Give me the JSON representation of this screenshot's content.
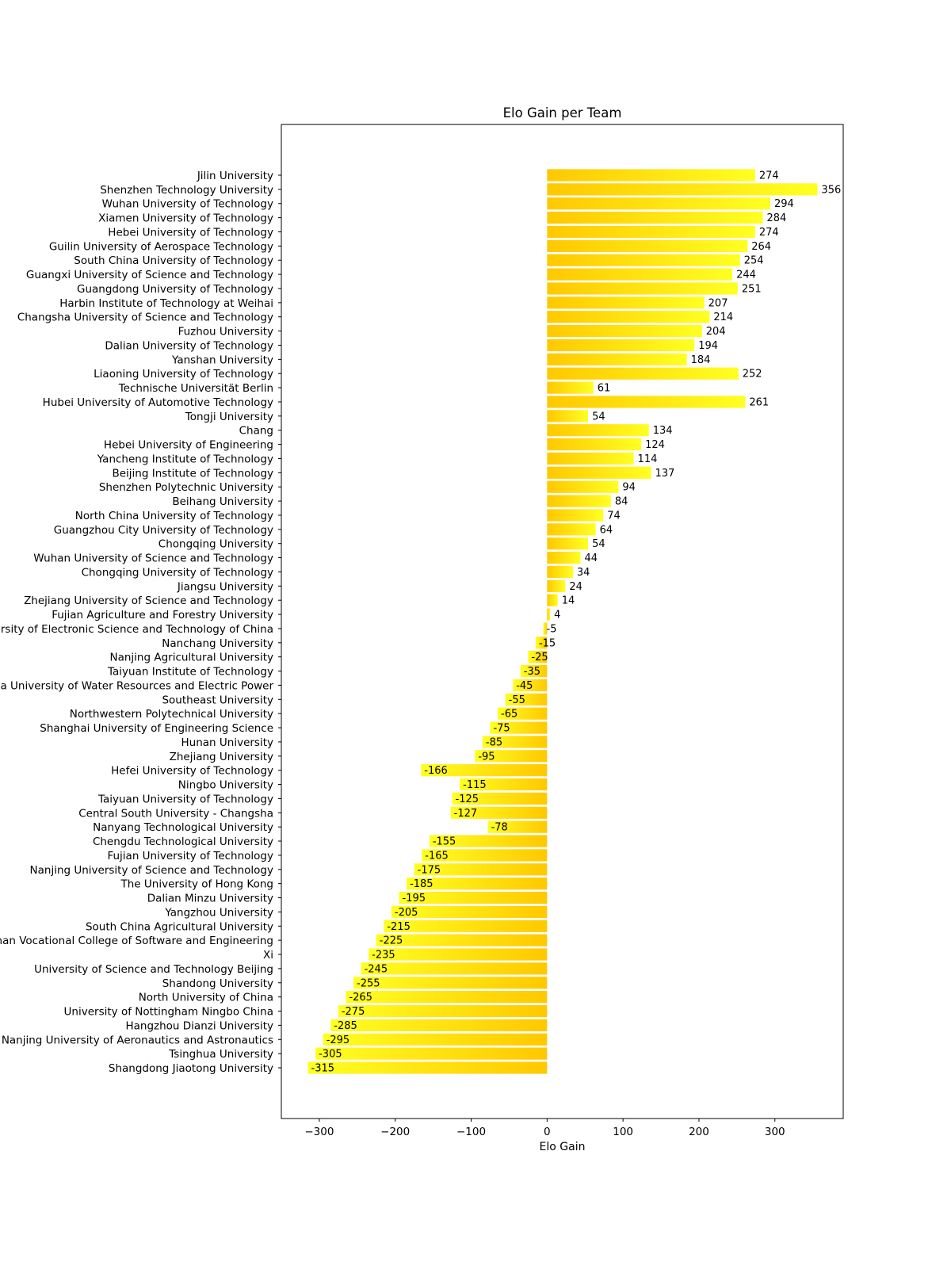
{
  "chart_data": {
    "type": "bar",
    "orientation": "horizontal",
    "title": "Elo Gain per Team",
    "xlabel": "Elo Gain",
    "ylabel": "",
    "xlim": [
      -350,
      390
    ],
    "xticks": [
      -300,
      -200,
      -100,
      0,
      100,
      200,
      300
    ],
    "xtick_labels": [
      "−300",
      "−200",
      "−100",
      "0",
      "100",
      "200",
      "300"
    ],
    "grid": false,
    "legend": "none",
    "colors": {
      "light": "#ffff22",
      "dark": "#ffc800",
      "frame": "#000000",
      "background": "#ffffff"
    },
    "categories": [
      "Jilin University",
      "Shenzhen Technology University",
      "Wuhan University of Technology",
      "Xiamen University of Technology",
      "Hebei University of Technology",
      "Guilin University of Aerospace Technology",
      "South China University of Technology",
      "Guangxi University of Science and Technology",
      "Guangdong University of Technology",
      "Harbin Institute of Technology at Weihai",
      "Changsha University of Science and Technology",
      "Fuzhou University",
      "Dalian University of Technology",
      "Yanshan University",
      "Liaoning University of Technology",
      "Technische Universität Berlin",
      "Hubei University of Automotive Technology",
      "Tongji University",
      "Chang",
      "Hebei University of Engineering",
      "Yancheng Institute of Technology",
      "Beijing Institute of Technology",
      "Shenzhen Polytechnic University",
      "Beihang University",
      "North China University of Technology",
      "Guangzhou City University of Technology",
      "Chongqing University",
      "Wuhan University of Science and Technology",
      "Chongqing University of Technology",
      "Jiangsu University",
      "Zhejiang University of Science and Technology",
      "Fujian Agriculture and Forestry University",
      "University of Electronic Science and Technology of China",
      "Nanchang University",
      "Nanjing Agricultural University",
      "Taiyuan Institute of Technology",
      "North China University of Water Resources and Electric Power",
      "Southeast University",
      "Northwestern Polytechnical University",
      "Shanghai University of Engineering Science",
      "Hunan University",
      "Zhejiang University",
      "Hefei University of Technology",
      "Ningbo University",
      "Taiyuan University of Technology",
      "Central South University - Changsha",
      "Nanyang Technological University",
      "Chengdu Technological University",
      "Fujian University of Technology",
      "Nanjing University of Science and Technology",
      "The University of Hong Kong",
      "Dalian Minzu University",
      "Yangzhou University",
      "South China Agricultural University",
      "Wuhan Vocational College of Software and Engineering",
      "Xi",
      "University of Science and Technology Beijing",
      "Shandong University",
      "North University of China",
      "University of Nottingham Ningbo China",
      "Hangzhou Dianzi University",
      "Nanjing University of Aeronautics and Astronautics",
      "Tsinghua University",
      "Shangdong Jiaotong University"
    ],
    "values": [
      274,
      356,
      294,
      284,
      274,
      264,
      254,
      244,
      251,
      207,
      214,
      204,
      194,
      184,
      252,
      61,
      261,
      54,
      134,
      124,
      114,
      137,
      94,
      84,
      74,
      64,
      54,
      44,
      34,
      24,
      14,
      4,
      -5,
      -15,
      -25,
      -35,
      -45,
      -55,
      -65,
      -75,
      -85,
      -95,
      -166,
      -115,
      -125,
      -127,
      -78,
      -155,
      -165,
      -175,
      -185,
      -195,
      -205,
      -215,
      -225,
      -235,
      -245,
      -255,
      -265,
      -275,
      -285,
      -295,
      -305,
      -315
    ]
  }
}
